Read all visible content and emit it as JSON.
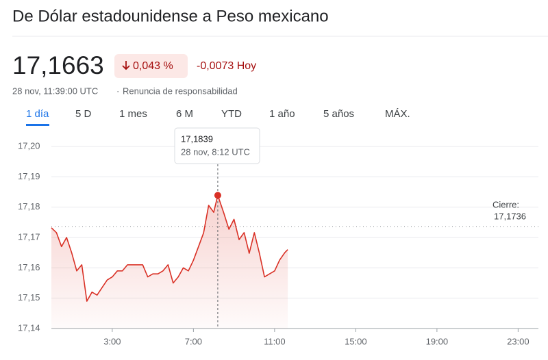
{
  "header": {
    "title": "De Dólar estadounidense a Peso mexicano",
    "price": "17,1663",
    "change_pct": "0,043 %",
    "change_abs": "-0,0073 Hoy",
    "timestamp": "28 nov, 11:39:00 UTC",
    "disclaimer": "Renuncia de responsabilidad",
    "tabs": [
      "1 día",
      "5 D",
      "1 mes",
      "6 M",
      "YTD",
      "1 año",
      "5 años",
      "MÁX."
    ]
  },
  "chart_data": {
    "type": "line",
    "x": [
      0,
      0.25,
      0.5,
      0.75,
      1,
      1.25,
      1.5,
      1.75,
      2,
      2.25,
      2.5,
      2.75,
      3,
      3.25,
      3.5,
      3.75,
      4,
      4.25,
      4.5,
      4.75,
      5,
      5.25,
      5.5,
      5.75,
      6,
      6.25,
      6.5,
      6.75,
      7,
      7.25,
      7.5,
      7.75,
      8,
      8.2,
      8.5,
      8.75,
      9,
      9.25,
      9.5,
      9.75,
      10,
      10.25,
      10.5,
      10.75,
      11,
      11.25,
      11.5,
      11.65
    ],
    "series": [
      {
        "color": "#d93025",
        "values": [
          17.1732,
          17.1716,
          17.167,
          17.17,
          17.165,
          17.159,
          17.161,
          17.149,
          17.152,
          17.151,
          17.1535,
          17.156,
          17.157,
          17.159,
          17.159,
          17.161,
          17.161,
          17.161,
          17.161,
          17.157,
          17.158,
          17.158,
          17.159,
          17.161,
          17.155,
          17.157,
          17.16,
          17.159,
          17.1625,
          17.167,
          17.1715,
          17.1806,
          17.1783,
          17.1839,
          17.178,
          17.1727,
          17.176,
          17.1693,
          17.1716,
          17.1648,
          17.1716,
          17.1648,
          17.157,
          17.158,
          17.159,
          17.1626,
          17.165,
          17.166
        ]
      }
    ],
    "xlim": [
      0,
      24
    ],
    "xticks": [
      {
        "value": 3,
        "label": "3:00"
      },
      {
        "value": 7,
        "label": "7:00"
      },
      {
        "value": 11,
        "label": "11:00"
      },
      {
        "value": 15,
        "label": "15:00"
      },
      {
        "value": 19,
        "label": "19:00"
      },
      {
        "value": 23,
        "label": "23:00"
      }
    ],
    "ylim": [
      17.14,
      17.2
    ],
    "yticks": [
      {
        "value": 17.14,
        "label": "17,14"
      },
      {
        "value": 17.15,
        "label": "17,15"
      },
      {
        "value": 17.16,
        "label": "17,16"
      },
      {
        "value": 17.17,
        "label": "17,17"
      },
      {
        "value": 17.18,
        "label": "17,18"
      },
      {
        "value": 17.19,
        "label": "17,19"
      },
      {
        "value": 17.2,
        "label": "17,20"
      }
    ],
    "grid": true,
    "previous_close": {
      "label": "Cierre:",
      "value": 17.1736,
      "value_label": "17,1736"
    },
    "tooltip": {
      "x": 8.2,
      "value": 17.1839,
      "value_label": "17,1839",
      "time_label": "28 nov, 8:12 UTC"
    }
  }
}
